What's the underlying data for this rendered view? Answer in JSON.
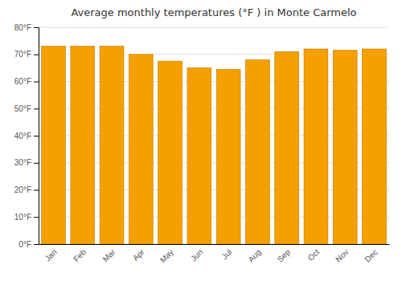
{
  "chart_data": {
    "type": "bar",
    "title": "Average monthly temperatures (°F ) in Monte Carmelo",
    "categories": [
      "Jan",
      "Feb",
      "Mar",
      "Apr",
      "May",
      "Jun",
      "Jul",
      "Aug",
      "Sep",
      "Oct",
      "Nov",
      "Dec"
    ],
    "values": [
      73,
      73,
      73,
      70,
      67.5,
      65,
      64.5,
      68,
      71,
      72,
      71.5,
      72
    ],
    "color": "#F5A000",
    "ylim": [
      0,
      80
    ],
    "yticks": [
      {
        "value": 0,
        "label": "0°F"
      },
      {
        "value": 10,
        "label": "10°F"
      },
      {
        "value": 20,
        "label": "20°F"
      },
      {
        "value": 30,
        "label": "30°F"
      },
      {
        "value": 40,
        "label": "40°F"
      },
      {
        "value": 50,
        "label": "50°F"
      },
      {
        "value": 60,
        "label": "60°F"
      },
      {
        "value": 70,
        "label": "70°F"
      },
      {
        "value": 80,
        "label": "80°F"
      }
    ],
    "grid": true
  }
}
